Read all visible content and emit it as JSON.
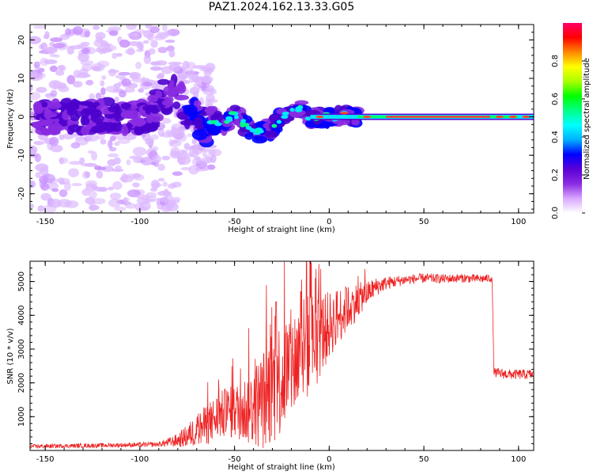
{
  "title": "PAZ1.2024.162.13.33.G05",
  "chart_data": [
    {
      "type": "heatmap",
      "xlabel": "Height of straight line (km)",
      "ylabel": "Frequency (Hz)",
      "xlim": [
        -158,
        108
      ],
      "ylim": [
        -25,
        24
      ],
      "xticks": [
        -150,
        -100,
        -50,
        0,
        50,
        100
      ],
      "yticks": [
        -20,
        -10,
        0,
        10,
        20
      ],
      "colorbar": {
        "label": "Normalized spectral amplitude",
        "range": [
          0,
          1
        ],
        "ticks": [
          "0.0",
          "0.2",
          "0.4",
          "0.6",
          "0.8"
        ],
        "colors": [
          "#ffffff",
          "#d9a6ff",
          "#8a2be2",
          "#5b00d6",
          "#0000ff",
          "#00b0ff",
          "#00ffff",
          "#00ff88",
          "#00ff00",
          "#aaff00",
          "#ffff00",
          "#ff8800",
          "#ff0000",
          "#ff0066"
        ]
      },
      "ridge": {
        "x": [
          -155,
          -140,
          -125,
          -110,
          -95,
          -88,
          -80,
          -75,
          -70,
          -65,
          -60,
          -55,
          -50,
          -45,
          -40,
          -35,
          -30,
          -25,
          -20,
          -15,
          -10,
          -5,
          0,
          5,
          10,
          15,
          20,
          30,
          50,
          70,
          90,
          108
        ],
        "y": [
          0,
          0,
          0,
          0,
          0,
          5,
          6,
          2,
          0,
          -3,
          -1,
          -2,
          1,
          -2,
          -4,
          -4,
          -3,
          0,
          2,
          2,
          -1,
          0,
          0,
          0,
          1,
          0,
          0,
          0,
          0,
          0,
          0,
          0
        ]
      }
    },
    {
      "type": "line",
      "xlabel": "Height of straight line (km)",
      "ylabel": "SNR (10 * v/v)",
      "xlim": [
        -158,
        108
      ],
      "ylim": [
        0,
        5600
      ],
      "xticks": [
        -150,
        -100,
        -50,
        0,
        50,
        100
      ],
      "yticks": [
        1000,
        2000,
        3000,
        4000,
        5000
      ],
      "color": "#ee2222",
      "envelope": {
        "x": [
          -158,
          -120,
          -90,
          -80,
          -75,
          -70,
          -65,
          -60,
          -55,
          -50,
          -45,
          -40,
          -35,
          -30,
          -25,
          -20,
          -15,
          -10,
          -5,
          0,
          5,
          10,
          15,
          20,
          25,
          30,
          40,
          50,
          60,
          70,
          80,
          86,
          87,
          95,
          108
        ],
        "y": [
          120,
          150,
          180,
          300,
          420,
          600,
          750,
          950,
          1100,
          1150,
          1200,
          1300,
          1500,
          1900,
          2200,
          2500,
          2900,
          3100,
          3400,
          3700,
          4000,
          4200,
          4450,
          4650,
          4850,
          4950,
          5050,
          5100,
          5080,
          5100,
          5080,
          5100,
          2300,
          2250,
          2250
        ]
      },
      "spread": {
        "x": [
          -158,
          -90,
          -80,
          -70,
          -60,
          -50,
          -40,
          -30,
          -20,
          -10,
          0,
          10,
          20,
          30,
          40,
          86,
          87,
          108
        ],
        "y": [
          60,
          70,
          200,
          500,
          700,
          800,
          1200,
          1800,
          1700,
          1600,
          1000,
          700,
          350,
          200,
          150,
          120,
          150,
          150
        ]
      },
      "peaks": [
        {
          "x": -28,
          "y": 4400
        },
        {
          "x": -12,
          "y": 5600
        },
        {
          "x": -15,
          "y": 4700
        },
        {
          "x": 9,
          "y": 4800
        }
      ]
    }
  ]
}
